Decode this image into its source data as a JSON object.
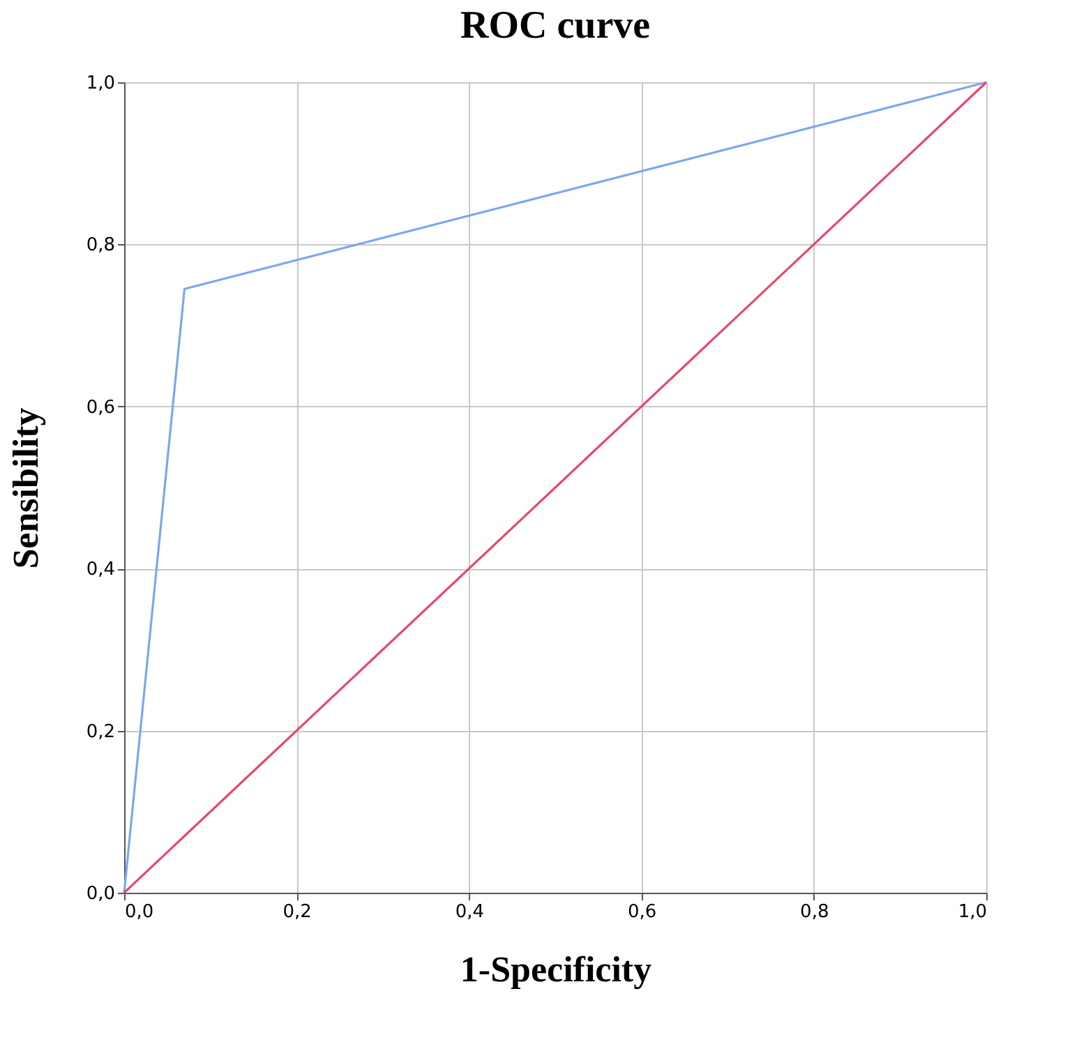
{
  "chart_data": {
    "type": "line",
    "title": "ROC curve",
    "xlabel": "1-Specificity",
    "ylabel": "Sensibility",
    "x": [
      0,
      0.07,
      1
    ],
    "series": [
      {
        "color": "#7ea6ee",
        "values": [
          0,
          0.745,
          1
        ]
      },
      {
        "color": "#e8476a",
        "x": [
          0,
          1
        ],
        "values": [
          0,
          1
        ]
      }
    ],
    "xlim": [
      0,
      1
    ],
    "ylim": [
      0,
      1
    ],
    "xticks": [
      {
        "value": 0,
        "label": "0,0"
      },
      {
        "value": 0.2,
        "label": "0,2"
      },
      {
        "value": 0.4,
        "label": "0,4"
      },
      {
        "value": 0.6,
        "label": "0,6"
      },
      {
        "value": 0.8,
        "label": "0,8"
      },
      {
        "value": 1,
        "label": "1,0"
      }
    ],
    "yticks": [
      {
        "value": 0,
        "label": "0,0"
      },
      {
        "value": 0.2,
        "label": "0,2"
      },
      {
        "value": 0.4,
        "label": "0,4"
      },
      {
        "value": 0.6,
        "label": "0,6"
      },
      {
        "value": 0.8,
        "label": "0,8"
      },
      {
        "value": 1,
        "label": "1,0"
      }
    ],
    "grid": true,
    "marker": "none",
    "line_style": "solid"
  }
}
